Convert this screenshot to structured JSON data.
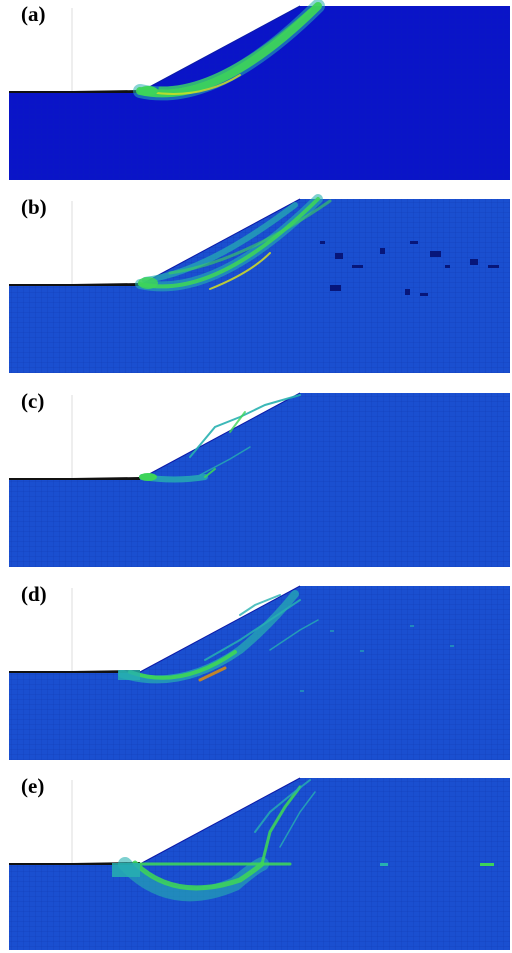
{
  "figure": {
    "panels": [
      {
        "id": "a",
        "label": "(a)",
        "shear_band_shape": "single-continuous-arc",
        "scattered_patches": false
      },
      {
        "id": "b",
        "label": "(b)",
        "shear_band_shape": "double-arc",
        "scattered_patches": true
      },
      {
        "id": "c",
        "label": "(c)",
        "shear_band_shape": "fragmented-cracks",
        "scattered_patches": false
      },
      {
        "id": "d",
        "label": "(d)",
        "shear_band_shape": "arc-with-cracks",
        "scattered_patches": true
      },
      {
        "id": "e",
        "label": "(e)",
        "shear_band_shape": "arc-with-vertical-crack",
        "scattered_patches": true
      }
    ],
    "colors": {
      "background_low": "#0a14c8",
      "background_mesh": "#1a4fd0",
      "band_high": "#3dd45a",
      "band_mid": "#27b0b0",
      "peak": "#d8e020",
      "void": "#061070"
    }
  }
}
